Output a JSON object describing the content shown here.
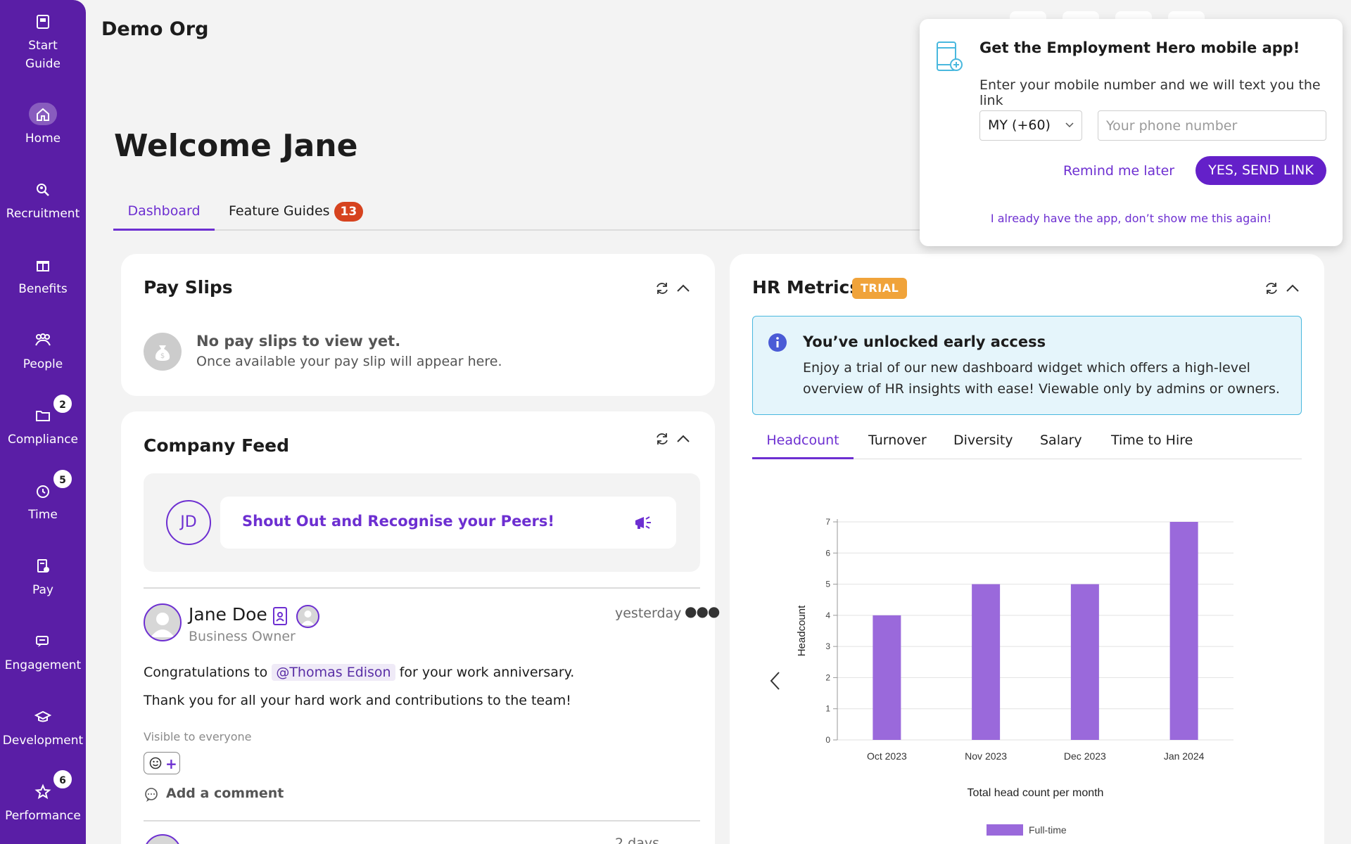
{
  "app": {
    "org_name": "Demo Org"
  },
  "sidebar": {
    "items": [
      {
        "label": "Start\nGuide",
        "icon": "book-icon"
      },
      {
        "label": "Home",
        "icon": "home-icon",
        "active": true
      },
      {
        "label": "Recruitment",
        "icon": "search-people-icon"
      },
      {
        "label": "Benefits",
        "icon": "gift-icon"
      },
      {
        "label": "People",
        "icon": "people-icon"
      },
      {
        "label": "Compliance",
        "icon": "folder-icon",
        "badge": "2"
      },
      {
        "label": "Time",
        "icon": "clock-icon",
        "badge": "5"
      },
      {
        "label": "Pay",
        "icon": "payslip-icon"
      },
      {
        "label": "Engagement",
        "icon": "chat-icon"
      },
      {
        "label": "Development",
        "icon": "graduation-cap-icon"
      },
      {
        "label": "Performance",
        "icon": "star-icon",
        "badge": "6"
      }
    ]
  },
  "main": {
    "welcome": "Welcome Jane",
    "tabs": [
      {
        "label": "Dashboard",
        "active": true
      },
      {
        "label": "Feature Guides",
        "badge": "13"
      }
    ]
  },
  "pay_slips": {
    "title": "Pay Slips",
    "empty_title": "No pay slips to view yet.",
    "empty_sub": "Once available your pay slip will appear here."
  },
  "company_feed": {
    "title": "Company Feed",
    "initials": "JD",
    "shout_out": "Shout Out and Recognise your Peers!",
    "post": {
      "author": "Jane Doe",
      "role": "Business Owner",
      "time": "yesterday",
      "line1_before": "Congratulations to",
      "mention": "@Thomas Edison",
      "line1_after": "for your work anniversary.",
      "line2": "Thank you for all your hard work and contributions to the team!",
      "visibility": "Visible to everyone",
      "add_comment": "Add a comment"
    },
    "next_post_time": "2 days"
  },
  "hr_metrics": {
    "title": "HR Metrics",
    "trial_badge": "TRIAL",
    "notice_title": "You’ve unlocked early access",
    "notice_body": "Enjoy a trial of our new dashboard widget which offers a high-level overview of HR insights with ease! Viewable only by admins or owners.",
    "tabs": [
      {
        "label": "Headcount",
        "active": true
      },
      {
        "label": "Turnover"
      },
      {
        "label": "Diversity"
      },
      {
        "label": "Salary"
      },
      {
        "label": "Time to Hire"
      }
    ]
  },
  "chart_data": {
    "type": "bar",
    "categories": [
      "Oct 2023",
      "Nov 2023",
      "Dec 2023",
      "Jan 2024"
    ],
    "series": [
      {
        "name": "Full-time",
        "values": [
          4,
          5,
          5,
          7
        ],
        "color": "#9a69db"
      }
    ],
    "xlabel": "Total head count per month",
    "ylabel": "Headcount",
    "ylim": [
      0,
      7
    ],
    "yticks": [
      "0",
      "1",
      "2",
      "3",
      "4",
      "5",
      "6",
      "7"
    ],
    "grid": true,
    "legend": "bottom"
  },
  "popup": {
    "title": "Get the Employment Hero mobile app!",
    "description": "Enter your mobile number and we will text you the link",
    "country": "MY (+60)",
    "phone_placeholder": "Your phone number",
    "remind_label": "Remind me later",
    "send_label": "YES, SEND LINK",
    "dont_show": "I already have the app, don’t show me this again!"
  },
  "colors": {
    "brand": "#5a1ea6",
    "accent": "#6d2fd1",
    "badge_red": "#d6431f",
    "trial": "#f0a33a",
    "bar": "#9a69db"
  }
}
